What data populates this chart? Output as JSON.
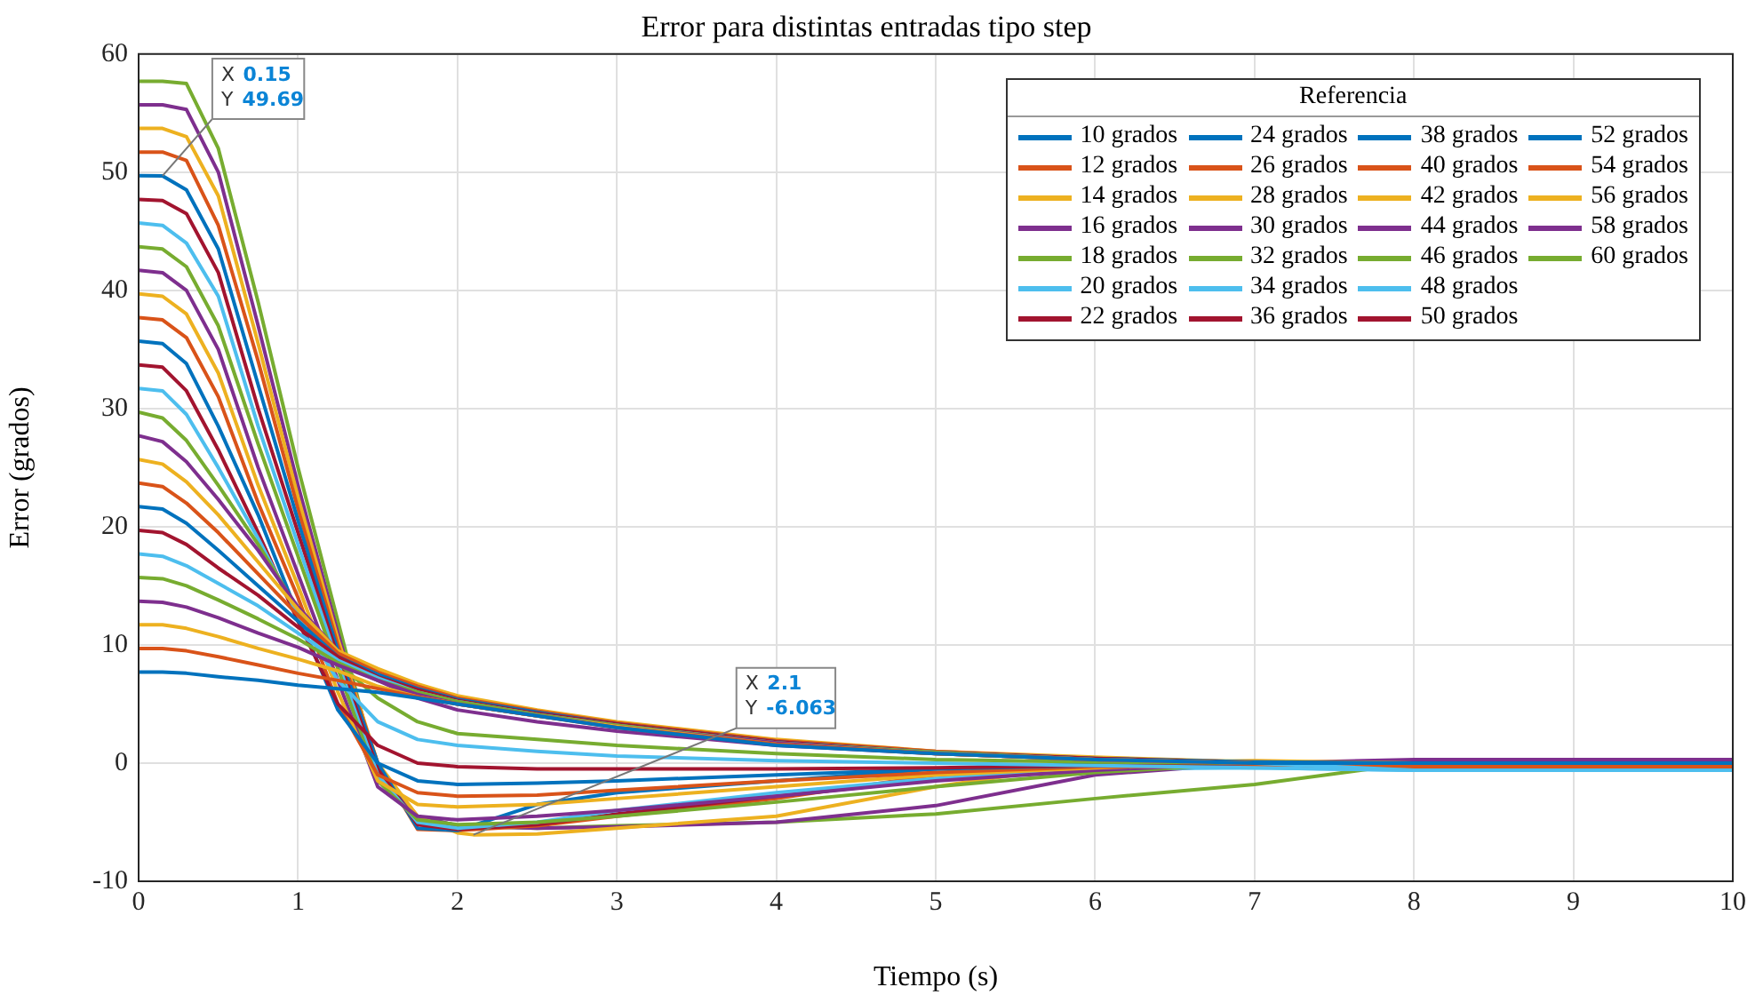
{
  "chart_data": {
    "type": "line",
    "title": "Error para distintas entradas tipo step",
    "xlabel": "Tiempo (s)",
    "ylabel": "Error (grados)",
    "legend_title": "Referencia",
    "legend": "top right",
    "grid": true,
    "marker": "none",
    "line_style": "solid",
    "x": [
      0,
      0.15,
      0.3,
      0.5,
      0.75,
      1,
      1.25,
      1.5,
      1.75,
      2,
      2.5,
      3,
      4,
      5,
      6,
      7,
      8,
      10
    ],
    "xlim": [
      0,
      10
    ],
    "xticks": [
      0,
      1,
      2,
      3,
      4,
      5,
      6,
      7,
      8,
      9,
      10
    ],
    "ylim": [
      -10,
      60
    ],
    "yticks": [
      -10,
      0,
      10,
      20,
      30,
      40,
      50,
      60
    ],
    "annotations": [
      {
        "text": "X 0.15\nY 49.69",
        "x": 0.15,
        "y": 49.69
      },
      {
        "text": "X 2.1\nY -6.063",
        "x": 2.1,
        "y": -6.063
      }
    ],
    "series": [
      {
        "name": "10 grados",
        "color": "#0072bd",
        "values": [
          7.7,
          7.7,
          7.6,
          7.3,
          7,
          6.6,
          6.3,
          6,
          5.5,
          5,
          4,
          3,
          1.5,
          0.8,
          0.3,
          0,
          0,
          0
        ]
      },
      {
        "name": "12 grados",
        "color": "#d95319",
        "values": [
          9.7,
          9.7,
          9.5,
          9,
          8.3,
          7.6,
          7,
          6.3,
          5.6,
          5,
          4,
          3,
          1.6,
          0.8,
          0.3,
          0,
          0,
          0
        ]
      },
      {
        "name": "14 grados",
        "color": "#edb120",
        "values": [
          11.7,
          11.7,
          11.4,
          10.7,
          9.7,
          8.8,
          7.8,
          6.5,
          5.6,
          5,
          4,
          3.1,
          1.6,
          0.8,
          0.3,
          0,
          0,
          0
        ]
      },
      {
        "name": "16 grados",
        "color": "#7e2f8e",
        "values": [
          13.7,
          13.6,
          13.2,
          12.3,
          11,
          9.8,
          8.3,
          7,
          5.8,
          5,
          4,
          3.1,
          1.7,
          0.8,
          0.3,
          0,
          0,
          0
        ]
      },
      {
        "name": "18 grados",
        "color": "#77ac30",
        "values": [
          15.7,
          15.6,
          15,
          13.8,
          12.2,
          10.5,
          8.5,
          7,
          6,
          5.2,
          4.1,
          3.2,
          1.7,
          0.9,
          0.3,
          0,
          0,
          0
        ]
      },
      {
        "name": "20 grados",
        "color": "#4dbeee",
        "values": [
          17.7,
          17.5,
          16.7,
          15.2,
          13.3,
          11,
          8.7,
          7.2,
          6,
          5.2,
          4.1,
          3.2,
          1.7,
          0.9,
          0.3,
          0,
          -0.6,
          -0.6
        ]
      },
      {
        "name": "22 grados",
        "color": "#a2142f",
        "values": [
          19.7,
          19.5,
          18.5,
          16.5,
          14.2,
          11.5,
          9,
          7.3,
          6.2,
          5.3,
          4.2,
          3.3,
          1.8,
          0.9,
          0.4,
          0,
          0,
          0
        ]
      },
      {
        "name": "24 grados",
        "color": "#0072bd",
        "values": [
          21.7,
          21.5,
          20.3,
          18,
          15,
          12,
          9,
          7.5,
          6.3,
          5.4,
          4.3,
          3.3,
          1.8,
          0.9,
          0.4,
          0.1,
          0,
          0
        ]
      },
      {
        "name": "26 grados",
        "color": "#d95319",
        "values": [
          23.7,
          23.4,
          22,
          19.5,
          16,
          12.5,
          9.3,
          7.7,
          6.5,
          5.5,
          4.4,
          3.4,
          1.9,
          1,
          0.4,
          0.1,
          0,
          0
        ]
      },
      {
        "name": "28 grados",
        "color": "#edb120",
        "values": [
          25.7,
          25.3,
          23.8,
          21,
          17,
          13,
          9.5,
          8,
          6.7,
          5.7,
          4.5,
          3.5,
          2,
          1,
          0.5,
          0.1,
          0,
          0
        ]
      },
      {
        "name": "30 grados",
        "color": "#7e2f8e",
        "values": [
          27.7,
          27.2,
          25.5,
          22.3,
          18,
          13.2,
          9.5,
          7,
          5.5,
          4.5,
          3.5,
          2.7,
          1.5,
          0.8,
          0.3,
          0,
          0,
          0
        ]
      },
      {
        "name": "32 grados",
        "color": "#77ac30",
        "values": [
          29.7,
          29.2,
          27.3,
          23.5,
          18.5,
          13,
          8.5,
          5.5,
          3.5,
          2.5,
          2,
          1.5,
          0.8,
          0.3,
          0.1,
          0,
          0,
          0
        ]
      },
      {
        "name": "34 grados",
        "color": "#4dbeee",
        "values": [
          31.7,
          31.5,
          29.5,
          25,
          19,
          12.5,
          7,
          3.5,
          2,
          1.5,
          1,
          0.6,
          0.2,
          0,
          -0.2,
          -0.4,
          -0.6,
          -0.6
        ]
      },
      {
        "name": "36 grados",
        "color": "#a2142f",
        "values": [
          33.7,
          33.5,
          31.5,
          26.5,
          19.5,
          12,
          5,
          1.5,
          0,
          -0.3,
          -0.5,
          -0.5,
          -0.5,
          -0.4,
          -0.2,
          0,
          0,
          0
        ]
      },
      {
        "name": "38 grados",
        "color": "#0072bd",
        "values": [
          35.7,
          35.5,
          33.8,
          28.5,
          21,
          12.5,
          4.5,
          0,
          -1.5,
          -1.8,
          -1.7,
          -1.5,
          -1,
          -0.5,
          -0.2,
          0,
          0,
          0
        ]
      },
      {
        "name": "40 grados",
        "color": "#d95319",
        "values": [
          37.7,
          37.5,
          36,
          31,
          22,
          14,
          5,
          -1,
          -2.5,
          -2.8,
          -2.7,
          -2.3,
          -1.5,
          -0.8,
          -0.3,
          -0.3,
          -0.3,
          -0.3
        ]
      },
      {
        "name": "42 grados",
        "color": "#edb120",
        "values": [
          39.7,
          39.5,
          38,
          33,
          23.5,
          15,
          6,
          -1.5,
          -3.5,
          -3.7,
          -3.5,
          -3,
          -2,
          -1,
          -0.4,
          0,
          0,
          0
        ]
      },
      {
        "name": "44 grados",
        "color": "#7e2f8e",
        "values": [
          41.7,
          41.5,
          40,
          35,
          25,
          16,
          7,
          -2,
          -4.5,
          -4.8,
          -4.5,
          -4,
          -2.8,
          -1.5,
          -0.6,
          0,
          0,
          0
        ]
      },
      {
        "name": "46 grados",
        "color": "#77ac30",
        "values": [
          43.7,
          43.5,
          42,
          37,
          27,
          17.5,
          8,
          -1.5,
          -4.8,
          -5.2,
          -5,
          -4.5,
          -3.3,
          -2,
          -0.8,
          0,
          0,
          0
        ]
      },
      {
        "name": "48 grados",
        "color": "#4dbeee",
        "values": [
          45.7,
          45.5,
          44,
          39.5,
          28.5,
          18.5,
          8.5,
          -1,
          -5,
          -5.5,
          -5,
          -4,
          -2.5,
          -1.3,
          -0.5,
          -0.4,
          -0.6,
          -0.6
        ]
      },
      {
        "name": "50 grados",
        "color": "#a2142f",
        "values": [
          47.7,
          47.6,
          46.5,
          41.5,
          30,
          19.5,
          9,
          -0.5,
          -5.2,
          -5.6,
          -5.2,
          -4.3,
          -2.8,
          -1.4,
          -0.5,
          0,
          0,
          0
        ]
      },
      {
        "name": "52 grados",
        "color": "#0072bd",
        "values": [
          49.7,
          49.69,
          48.5,
          43.5,
          32,
          20.5,
          9.5,
          0,
          -5.5,
          -5.7,
          -3.5,
          -2.5,
          -1.5,
          -0.5,
          0,
          0,
          0,
          0
        ]
      },
      {
        "name": "54 grados",
        "color": "#d95319",
        "values": [
          51.7,
          51.7,
          51,
          45.5,
          34,
          21.5,
          10,
          0,
          -5.6,
          -5.7,
          -5.3,
          -4.5,
          -3,
          -1,
          -0.3,
          -0.3,
          -0.3,
          -0.3
        ]
      },
      {
        "name": "56 grados",
        "color": "#edb120",
        "x": [
          0,
          0.15,
          0.3,
          0.5,
          0.75,
          1,
          1.25,
          1.5,
          1.75,
          2,
          2.1,
          2.5,
          3,
          4,
          5,
          6,
          7,
          8,
          10
        ],
        "values": [
          53.7,
          53.7,
          53,
          48,
          35.5,
          22.5,
          10.5,
          0,
          -4.5,
          -5.9,
          -6.063,
          -6,
          -5.5,
          -4.5,
          -2,
          0,
          0.2,
          0,
          0
        ]
      },
      {
        "name": "58 grados",
        "color": "#7e2f8e",
        "values": [
          55.7,
          55.7,
          55.3,
          50,
          37,
          23.5,
          11,
          -0.5,
          -4.5,
          -5.3,
          -5.5,
          -5.4,
          -5,
          -3.6,
          -1,
          0,
          0.3,
          0.3
        ]
      },
      {
        "name": "60 grados",
        "color": "#77ac30",
        "values": [
          57.7,
          57.7,
          57.5,
          52,
          39,
          25,
          12,
          -1,
          -4.5,
          -5.3,
          -5.5,
          -5.3,
          -5,
          -4.3,
          -3,
          -1.8,
          0,
          0
        ]
      }
    ]
  }
}
